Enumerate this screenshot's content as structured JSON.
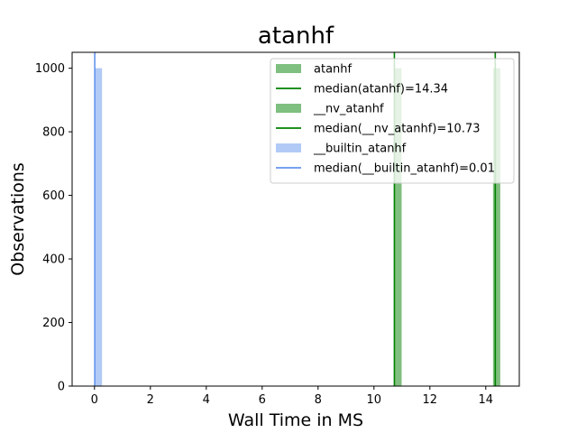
{
  "chart_data": {
    "type": "bar",
    "title": "atanhf",
    "xlabel": "Wall Time in MS",
    "ylabel": "Observations",
    "xlim": [
      -0.8,
      15.2
    ],
    "ylim": [
      0,
      1050
    ],
    "xticks": [
      0,
      2,
      4,
      6,
      8,
      10,
      12,
      14
    ],
    "yticks": [
      0,
      200,
      400,
      600,
      800,
      1000
    ],
    "legend_position": "top-right",
    "series": [
      {
        "name": "atanhf",
        "kind": "hist",
        "bin_start": 14.26,
        "bin_end": 14.52,
        "count": 1000,
        "color": "#008000",
        "alpha": 0.5
      },
      {
        "name": "median(atanhf)=14.34",
        "kind": "vline",
        "x": 14.34,
        "color": "#008000"
      },
      {
        "name": "__nv_atanhf",
        "kind": "hist",
        "bin_start": 10.73,
        "bin_end": 10.99,
        "count": 1000,
        "color": "#008000",
        "alpha": 0.5
      },
      {
        "name": "median(__nv_atanhf)=10.73",
        "kind": "vline",
        "x": 10.73,
        "color": "#008000"
      },
      {
        "name": "__builtin_atanhf",
        "kind": "hist",
        "bin_start": 0.01,
        "bin_end": 0.27,
        "count": 1000,
        "color": "#6495ED",
        "alpha": 0.5
      },
      {
        "name": "median(__builtin_atanhf)=0.01",
        "kind": "vline",
        "x": 0.01,
        "color": "#6495ED"
      }
    ]
  }
}
